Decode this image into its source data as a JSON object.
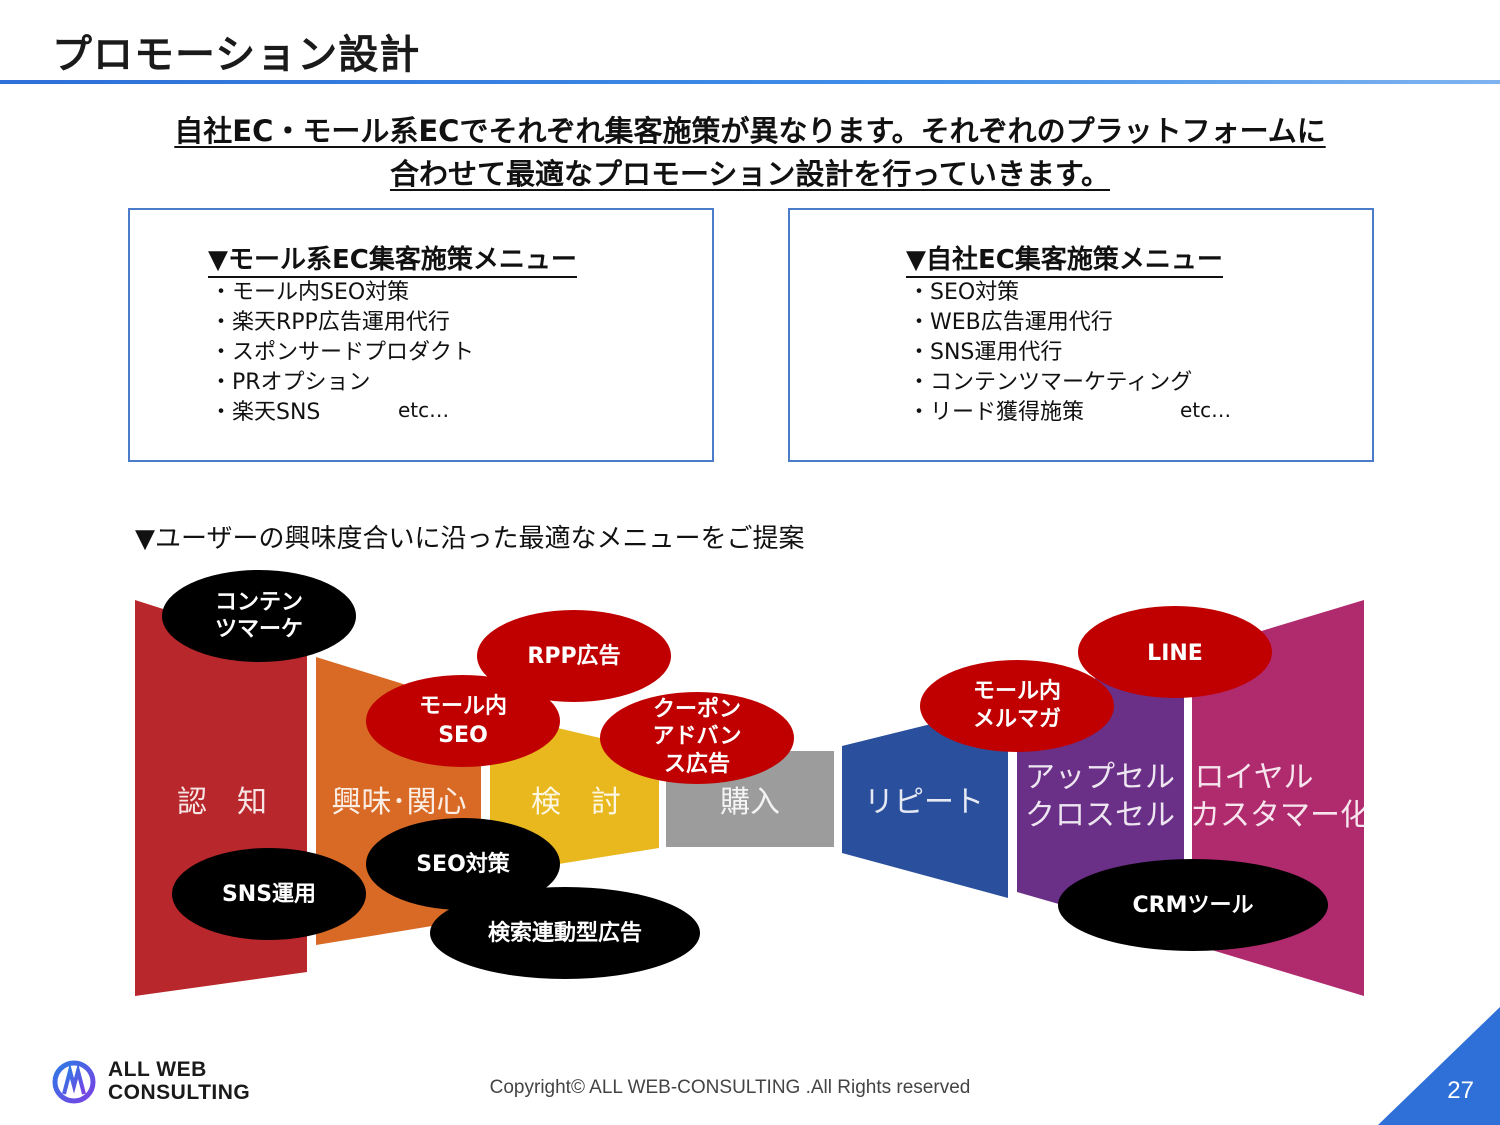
{
  "page": {
    "title": "プロモーション設計",
    "headline": [
      "自社EC・モール系ECでそれぞれ集客施策が異なります。それぞれのプラットフォームに",
      "合わせて最適なプロモーション設計を行っていきます。"
    ],
    "page_number": "27",
    "copyright": "Copyright© ALL WEB-CONSULTING .All Rights reserved",
    "accent_color": "#2e6fd8"
  },
  "mall_menu": {
    "heading": "▼モール系EC集客施策メニュー",
    "items": [
      "・モール内SEO対策",
      "・楽天RPP広告運用代行",
      "・スポンサードプロダクト",
      "・PRオプション",
      "・楽天SNS"
    ],
    "etc": "etc…"
  },
  "own_menu": {
    "heading": "▼自社EC集客施策メニュー",
    "items": [
      "・SEO対策",
      "・WEB広告運用代行",
      "・SNS運用代行",
      "・コンテンツマーケティング",
      "・リード獲得施策"
    ],
    "etc": "etc…"
  },
  "funnel": {
    "heading": "▼ユーザーの興味度合いに沿った最適なメニューをご提案",
    "stages": [
      {
        "label": "認　知",
        "color": "#b8272b"
      },
      {
        "label": "興味･関心",
        "color": "#d86a25"
      },
      {
        "label": "検　討",
        "color": "#e9b81e"
      },
      {
        "label": "購入",
        "color": "#9c9c9c"
      },
      {
        "label": "リピート",
        "color": "#2a4f9c"
      },
      {
        "label_lines": [
          "アップセル",
          "クロスセル"
        ],
        "color": "#6a2f86"
      },
      {
        "label_lines": [
          "ロイヤル",
          "カスタマー化"
        ],
        "color": "#b02a6e"
      }
    ],
    "bubbles": [
      {
        "lines": [
          "コンテン",
          "ツマーケ"
        ],
        "color": "#000000"
      },
      {
        "lines": [
          "RPP広告"
        ],
        "color": "#c00000"
      },
      {
        "lines": [
          "モール内",
          "SEO"
        ],
        "color": "#c00000"
      },
      {
        "lines": [
          "クーポン",
          "アドバン",
          "ス広告"
        ],
        "color": "#c00000"
      },
      {
        "lines": [
          "モール内",
          "メルマガ"
        ],
        "color": "#c00000"
      },
      {
        "lines": [
          "LINE"
        ],
        "color": "#c00000"
      },
      {
        "lines": [
          "SEO対策"
        ],
        "color": "#000000"
      },
      {
        "lines": [
          "SNS運用"
        ],
        "color": "#000000"
      },
      {
        "lines": [
          "検索連動型広告"
        ],
        "color": "#000000"
      },
      {
        "lines": [
          "CRMツール"
        ],
        "color": "#000000"
      }
    ]
  },
  "logo": {
    "lines": [
      "ALL WEB",
      "CONSULTING"
    ],
    "icon": "logo-icon"
  }
}
